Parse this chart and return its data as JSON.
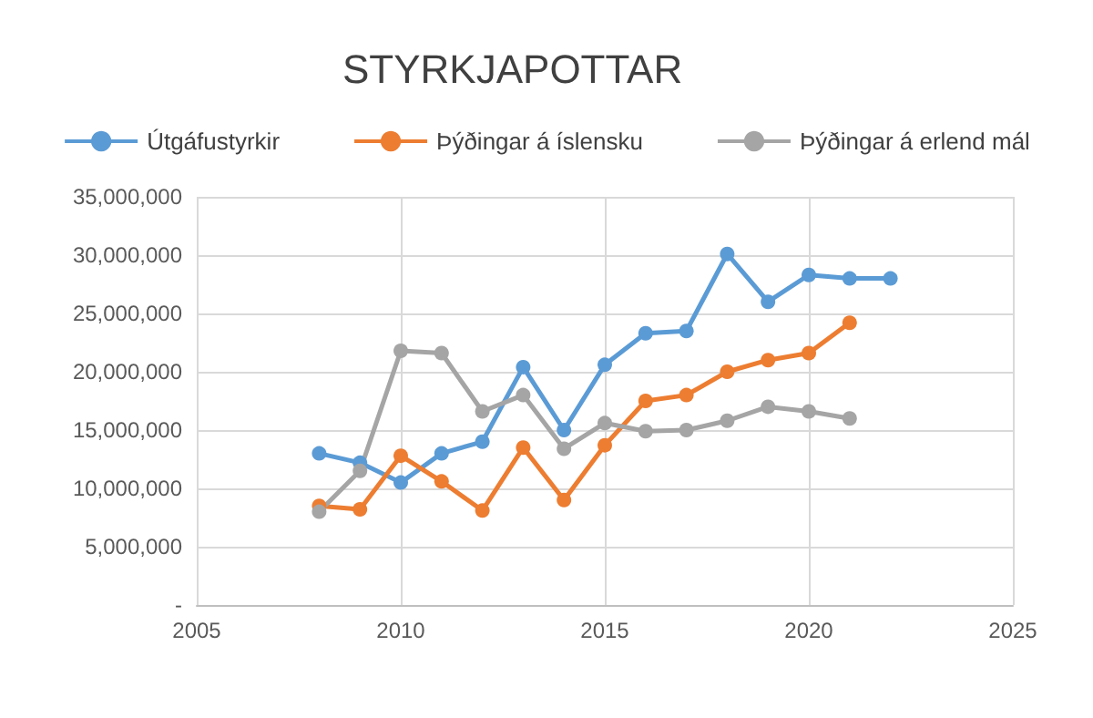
{
  "chart_data": {
    "type": "line",
    "title": "STYRKJAPOTTAR",
    "legend": "top",
    "grid": true,
    "marker": "circle",
    "line_style": "solid",
    "x": [
      2008,
      2009,
      2010,
      2011,
      2012,
      2013,
      2014,
      2015,
      2016,
      2017,
      2018,
      2019,
      2020,
      2021,
      2022
    ],
    "xlim": [
      2005,
      2025
    ],
    "xticks": [
      2005,
      2010,
      2015,
      2020,
      2025
    ],
    "ylim": [
      0,
      35000000
    ],
    "yticks": [
      {
        "value": 0,
        "label": "-"
      },
      {
        "value": 5000000,
        "label": "5,000,000"
      },
      {
        "value": 10000000,
        "label": "10,000,000"
      },
      {
        "value": 15000000,
        "label": "15,000,000"
      },
      {
        "value": 20000000,
        "label": "20,000,000"
      },
      {
        "value": 25000000,
        "label": "25,000,000"
      },
      {
        "value": 30000000,
        "label": "30,000,000"
      },
      {
        "value": 35000000,
        "label": "35,000,000"
      }
    ],
    "series": [
      {
        "name": "Útgáfustyrkir",
        "color": "#5b9bd5",
        "values": [
          13000000,
          12200000,
          10500000,
          13000000,
          14000000,
          20400000,
          15000000,
          20600000,
          23300000,
          23500000,
          30100000,
          26000000,
          28300000,
          28000000,
          28000000
        ]
      },
      {
        "name": "Þýðingar á íslensku",
        "color": "#ed7d31",
        "values": [
          8500000,
          8200000,
          12800000,
          10600000,
          8100000,
          13500000,
          9000000,
          13700000,
          17500000,
          18000000,
          20000000,
          21000000,
          21600000,
          24200000,
          null
        ]
      },
      {
        "name": "Þýðingar á erlend mál",
        "color": "#a5a5a5",
        "values": [
          8000000,
          11500000,
          21800000,
          21600000,
          16600000,
          18000000,
          13400000,
          15600000,
          14900000,
          15000000,
          15800000,
          17000000,
          16600000,
          16000000,
          null
        ]
      }
    ]
  }
}
